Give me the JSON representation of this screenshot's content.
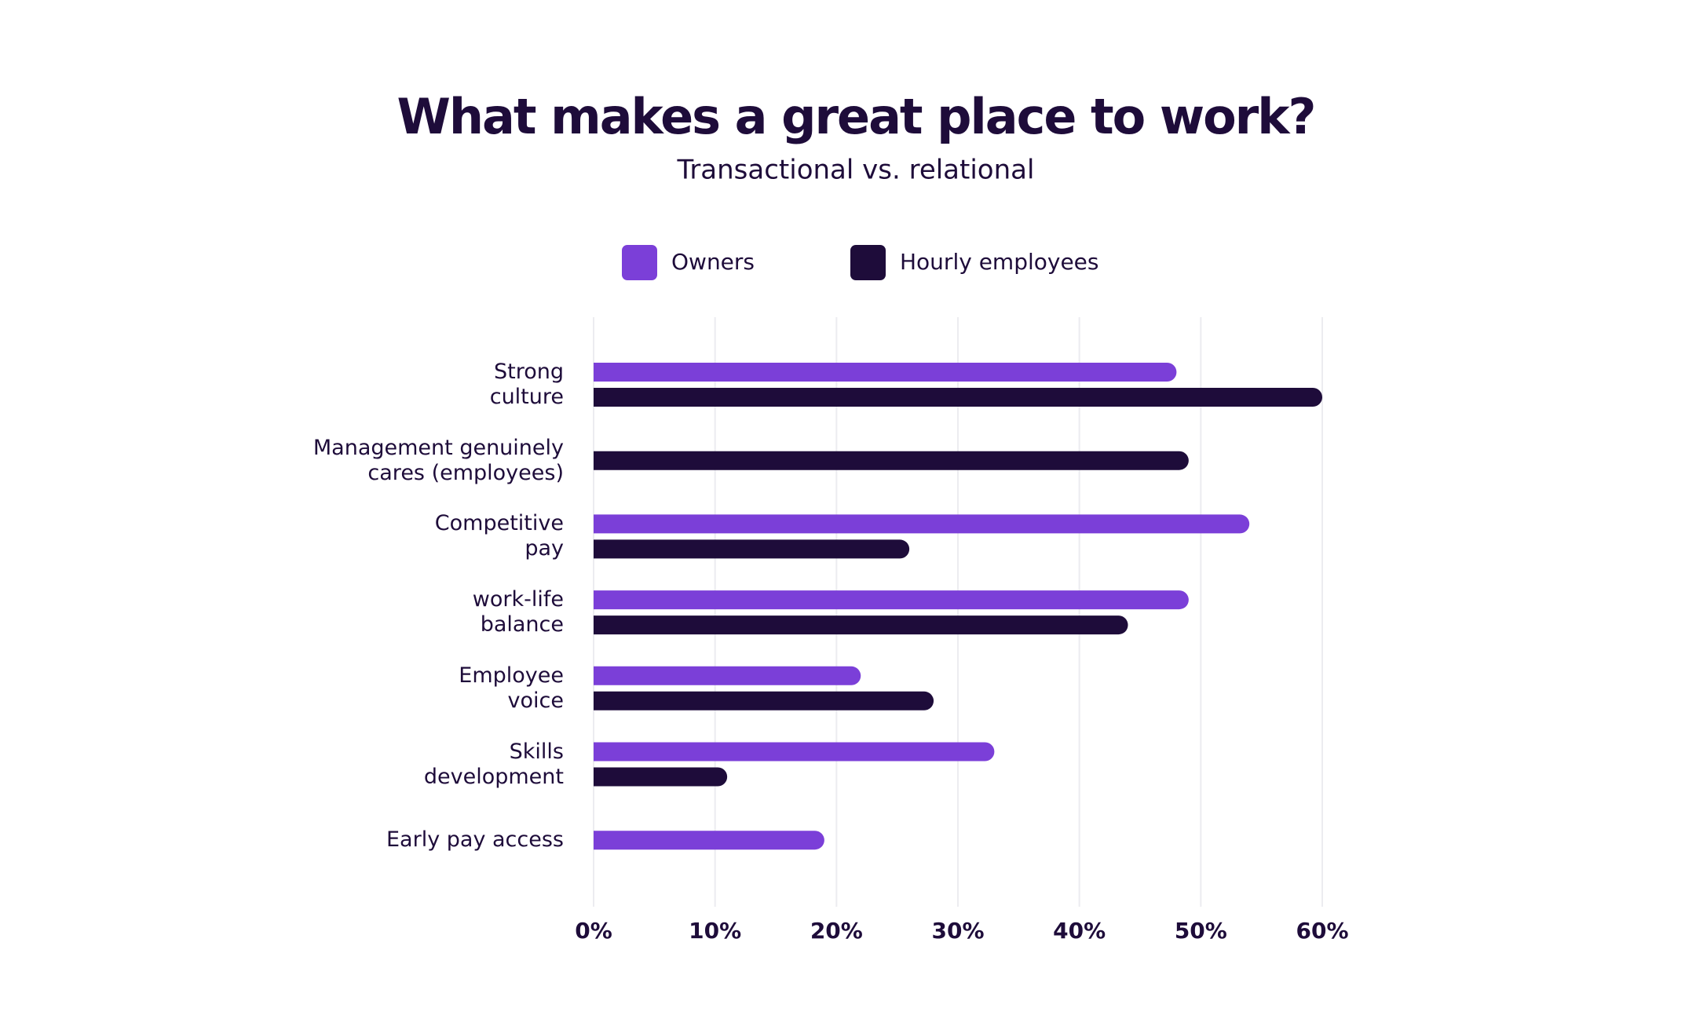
{
  "chart_data": {
    "type": "bar",
    "orientation": "horizontal",
    "title": "What makes a great place to work?",
    "subtitle": "Transactional vs. relational",
    "categories": [
      "Strong\nculture",
      "Management genuinely\ncares (employees)",
      "Competitive\npay",
      "work-life\nbalance",
      "Employee\nvoice",
      "Skills\ndevelopment",
      "Early pay access"
    ],
    "series": [
      {
        "name": "Owners",
        "color": "#7b3fd8",
        "values": [
          48,
          null,
          54,
          49,
          22,
          33,
          19
        ]
      },
      {
        "name": "Hourly employees",
        "color": "#1e0c3a",
        "values": [
          60,
          49,
          26,
          44,
          28,
          11,
          null
        ]
      }
    ],
    "xlim": [
      0,
      60
    ],
    "xticks": [
      {
        "value": 0,
        "label": "0%"
      },
      {
        "value": 10,
        "label": "10%"
      },
      {
        "value": 20,
        "label": "20%"
      },
      {
        "value": 30,
        "label": "30%"
      },
      {
        "value": 40,
        "label": "40%"
      },
      {
        "value": 50,
        "label": "50%"
      },
      {
        "value": 60,
        "label": "60%"
      }
    ],
    "grid": true,
    "legend": "top"
  }
}
